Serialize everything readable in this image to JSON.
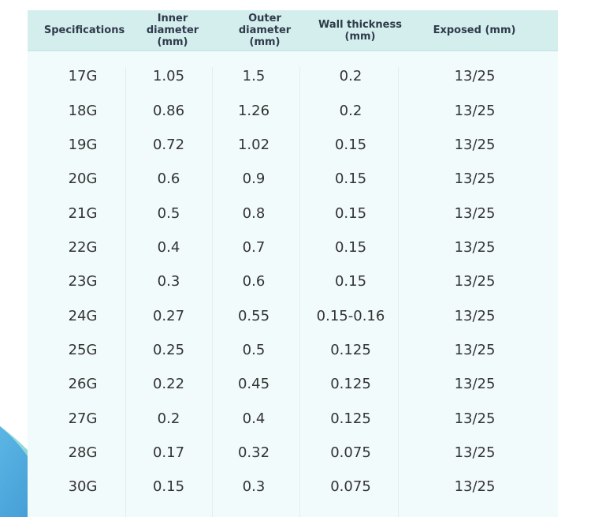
{
  "table": {
    "headers": [
      "Specifications",
      "Inner diameter (mm)",
      "Outer diameter (mm)",
      "Wall thickness (mm)",
      "Exposed (mm)"
    ],
    "rows": [
      [
        "17G",
        "1.05",
        "1.5",
        "0.2",
        "13/25"
      ],
      [
        "18G",
        "0.86",
        "1.26",
        "0.2",
        "13/25"
      ],
      [
        "19G",
        "0.72",
        "1.02",
        "0.15",
        "13/25"
      ],
      [
        "20G",
        "0.6",
        "0.9",
        "0.15",
        "13/25"
      ],
      [
        "21G",
        "0.5",
        "0.8",
        "0.15",
        "13/25"
      ],
      [
        "22G",
        "0.4",
        "0.7",
        "0.15",
        "13/25"
      ],
      [
        "23G",
        "0.3",
        "0.6",
        "0.15",
        "13/25"
      ],
      [
        "24G",
        "0.27",
        "0.55",
        "0.15-0.16",
        "13/25"
      ],
      [
        "25G",
        "0.25",
        "0.5",
        "0.125",
        "13/25"
      ],
      [
        "26G",
        "0.22",
        "0.45",
        "0.125",
        "13/25"
      ],
      [
        "27G",
        "0.2",
        "0.4",
        "0.125",
        "13/25"
      ],
      [
        "28G",
        "0.17",
        "0.32",
        "0.075",
        "13/25"
      ],
      [
        "30G",
        "0.15",
        "0.3",
        "0.075",
        "13/25"
      ]
    ]
  },
  "colors": {
    "header_bg": "#d4eeee",
    "body_bg": "#f2fbfb",
    "text": "#333333",
    "header_text": "#2f3a4a",
    "decor_blue": "#4aa6dc",
    "decor_teal": "#7fd0cf"
  }
}
